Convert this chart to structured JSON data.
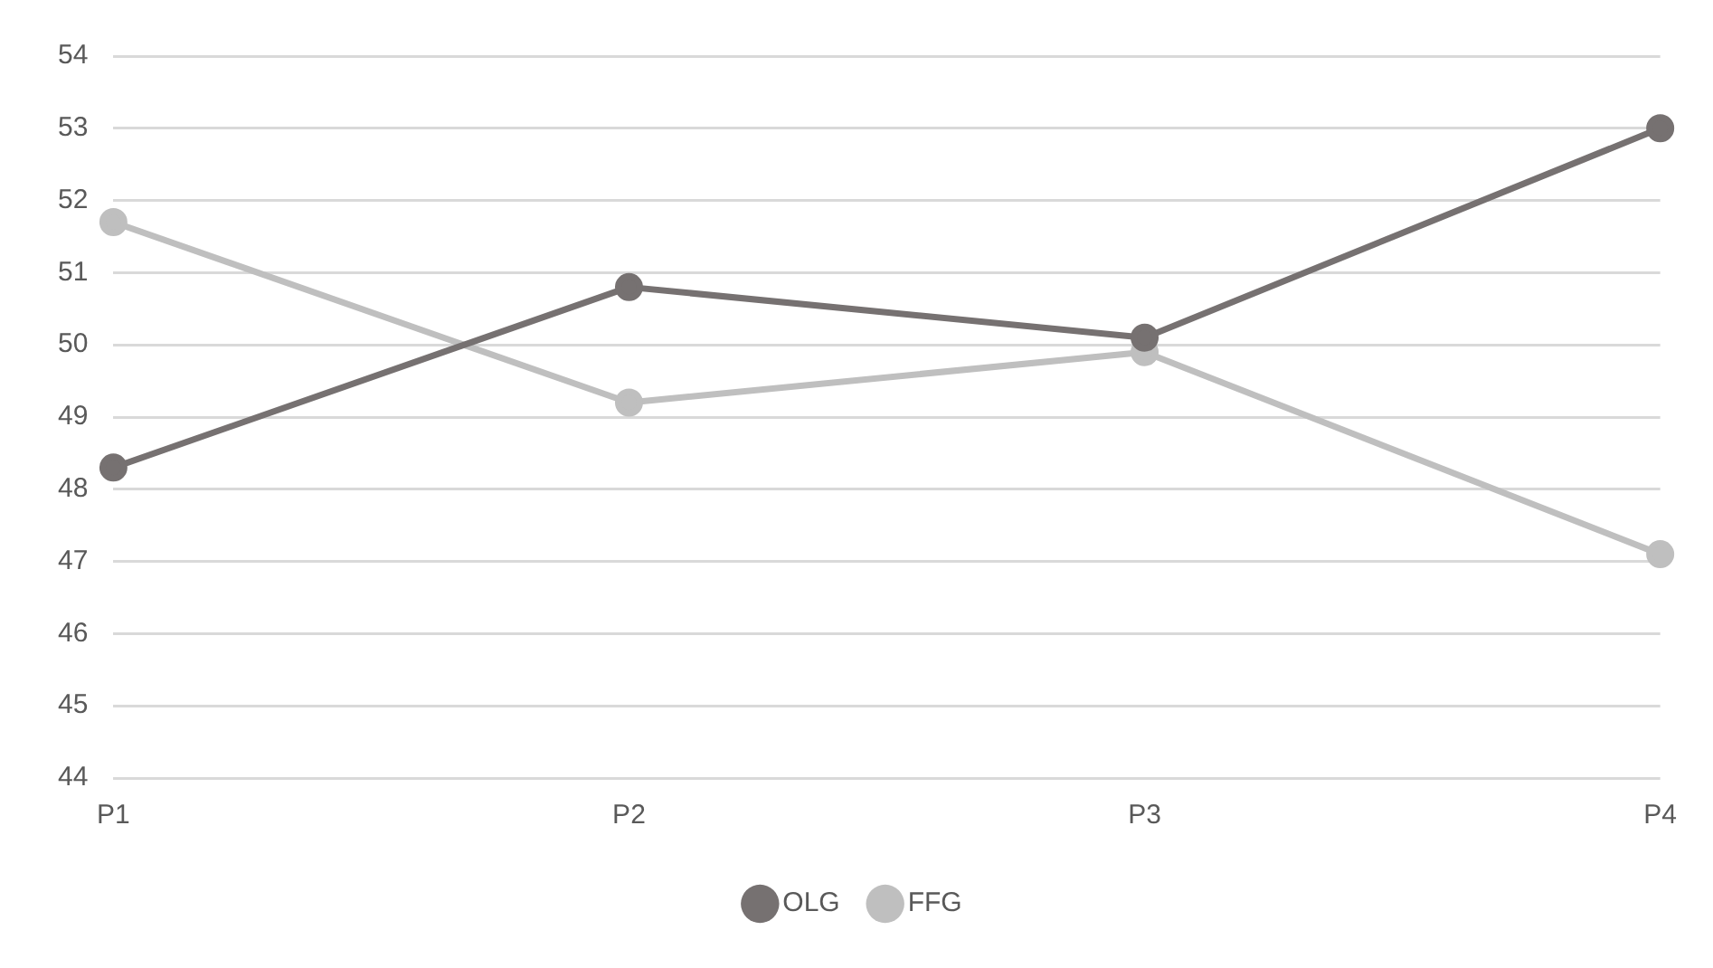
{
  "chart_data": {
    "type": "line",
    "categories": [
      "P1",
      "P2",
      "P3",
      "P4"
    ],
    "series": [
      {
        "name": "OLG",
        "color": "#767171",
        "values": [
          48.3,
          50.8,
          50.1,
          53.0
        ]
      },
      {
        "name": "FFG",
        "color": "#bfbfbf",
        "values": [
          51.7,
          49.2,
          49.9,
          47.1
        ]
      }
    ],
    "ylim": [
      44,
      54
    ],
    "yticks": [
      44,
      45,
      46,
      47,
      48,
      49,
      50,
      51,
      52,
      53,
      54
    ],
    "grid": "y",
    "legend": "bottom",
    "marker": "circle",
    "line_style": "solid"
  }
}
